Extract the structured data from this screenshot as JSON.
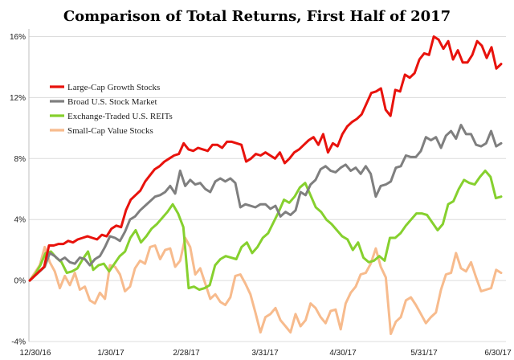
{
  "chart_data": {
    "type": "line",
    "title": "Comparison of Total Returns, First Half of 2017",
    "xlabel": "",
    "ylabel": "",
    "x_ticks": [
      "12/30/16",
      "1/30/17",
      "2/28/17",
      "3/31/17",
      "4/30/17",
      "5/31/17",
      "6/30/17"
    ],
    "y_ticks": [
      "-4%",
      "0%",
      "4%",
      "8%",
      "12%",
      "16%"
    ],
    "ylim": [
      -4,
      16.5
    ],
    "y_unit": "%",
    "grid": "horizontal",
    "legend_position": "upper-left",
    "series": [
      {
        "name": "Large-Cap Growth Stocks",
        "color": "#e8120c",
        "values": [
          0,
          0.3,
          0.6,
          0.9,
          2.3,
          2.3,
          2.4,
          2.4,
          2.6,
          2.5,
          2.7,
          2.8,
          2.9,
          2.8,
          2.7,
          3.0,
          2.9,
          3.4,
          3.6,
          3.5,
          4.6,
          5.3,
          5.6,
          5.9,
          6.5,
          6.9,
          7.3,
          7.5,
          7.8,
          8.0,
          8.2,
          8.3,
          9.0,
          8.6,
          8.5,
          8.7,
          8.6,
          8.5,
          8.9,
          8.9,
          8.7,
          9.1,
          9.1,
          9.0,
          8.9,
          7.8,
          8.0,
          8.3,
          8.2,
          8.4,
          8.2,
          8.0,
          8.4,
          7.7,
          8.0,
          8.4,
          8.6,
          8.9,
          9.2,
          9.4,
          8.9,
          9.6,
          8.4,
          9.0,
          8.8,
          9.6,
          10.1,
          10.4,
          10.6,
          10.9,
          11.6,
          12.3,
          12.4,
          12.6,
          11.2,
          10.8,
          12.5,
          12.4,
          13.5,
          13.3,
          13.6,
          14.5,
          14.9,
          14.8,
          16.0,
          15.8,
          15.2,
          15.7,
          14.5,
          15.1,
          14.3,
          14.3,
          14.8,
          15.7,
          15.4,
          14.6,
          15.3,
          13.9,
          14.2
        ]
      },
      {
        "name": "Broad U.S. Stock Market",
        "color": "#7f7f7f",
        "values": [
          0,
          0.3,
          0.6,
          0.9,
          1.8,
          1.6,
          1.3,
          1.5,
          1.2,
          1.1,
          1.5,
          1.4,
          1.0,
          1.4,
          1.6,
          2.2,
          2.9,
          2.8,
          2.6,
          3.2,
          4.0,
          4.2,
          4.6,
          4.9,
          5.2,
          5.5,
          5.6,
          5.8,
          6.2,
          5.7,
          7.2,
          6.2,
          6.6,
          6.3,
          6.4,
          6.0,
          5.8,
          6.5,
          6.7,
          6.5,
          6.7,
          6.4,
          4.8,
          5.0,
          4.9,
          4.8,
          5.0,
          5.0,
          4.7,
          4.9,
          4.2,
          4.5,
          4.3,
          4.6,
          5.8,
          5.6,
          6.3,
          6.6,
          7.3,
          7.5,
          7.2,
          7.1,
          7.4,
          7.6,
          7.2,
          7.4,
          7.0,
          7.5,
          7.0,
          5.5,
          6.2,
          6.3,
          6.5,
          7.4,
          7.5,
          8.2,
          8.1,
          8.1,
          8.5,
          9.4,
          9.2,
          9.4,
          8.7,
          9.5,
          9.8,
          9.3,
          10.2,
          9.6,
          9.6,
          8.9,
          8.8,
          9.0,
          9.8,
          8.8,
          9.0
        ]
      },
      {
        "name": "Exchange-Traded U.S. REITs",
        "color": "#86d02e",
        "values": [
          0,
          0.4,
          1.0,
          1.8,
          1.9,
          1.5,
          1.2,
          0.5,
          0.6,
          0.8,
          1.4,
          1.9,
          0.7,
          1.0,
          1.1,
          0.6,
          1.1,
          1.6,
          1.9,
          2.8,
          3.3,
          2.5,
          2.9,
          3.4,
          3.7,
          4.1,
          4.5,
          5.0,
          4.4,
          3.5,
          -0.5,
          -0.4,
          -0.6,
          -0.5,
          -0.3,
          1.0,
          1.4,
          1.6,
          1.5,
          1.4,
          2.2,
          2.5,
          1.8,
          2.2,
          2.8,
          3.1,
          3.8,
          4.5,
          5.3,
          5.1,
          5.5,
          6.1,
          6.4,
          5.6,
          4.8,
          4.5,
          4.0,
          3.7,
          3.3,
          2.9,
          2.7,
          2.0,
          2.5,
          1.5,
          1.2,
          1.3,
          1.6,
          1.3,
          2.8,
          2.8,
          3.1,
          3.6,
          4.0,
          4.4,
          4.4,
          4.3,
          3.8,
          3.3,
          3.7,
          5.0,
          5.2,
          6.0,
          6.6,
          6.4,
          6.3,
          6.8,
          7.2,
          6.8,
          5.4,
          5.5
        ]
      },
      {
        "name": "Small-Cap Value Stocks",
        "color": "#f7bb8d",
        "values": [
          0,
          0.5,
          1.0,
          2.2,
          1.2,
          0.6,
          -0.5,
          0.3,
          -0.3,
          0.5,
          -0.6,
          -0.4,
          -1.3,
          -1.5,
          -0.8,
          -1.2,
          1.0,
          0.9,
          0.4,
          -0.7,
          -0.4,
          0.8,
          1.3,
          1.1,
          2.2,
          2.3,
          1.4,
          2.0,
          2.1,
          0.9,
          1.3,
          2.8,
          2.2,
          0.4,
          0.8,
          -0.2,
          -1.2,
          -0.9,
          -1.4,
          -1.6,
          -1.1,
          0.3,
          0.4,
          -0.2,
          -0.9,
          -2.1,
          -3.4,
          -2.4,
          -2.2,
          -1.8,
          -2.6,
          -3.0,
          -3.4,
          -2.2,
          -3.0,
          -2.6,
          -1.5,
          -1.8,
          -2.4,
          -2.8,
          -2.0,
          -1.9,
          -3.2,
          -1.5,
          -0.8,
          -0.4,
          0.4,
          0.5,
          1.1,
          2.1,
          0.9,
          0.2,
          -3.5,
          -2.7,
          -2.4,
          -1.3,
          -1.1,
          -1.6,
          -2.2,
          -2.8,
          -2.4,
          -2.1,
          -0.6,
          0.4,
          0.5,
          1.8,
          0.8,
          0.6,
          1.2,
          0.2,
          -0.7,
          -0.6,
          -0.5,
          0.7,
          0.5
        ]
      }
    ]
  }
}
